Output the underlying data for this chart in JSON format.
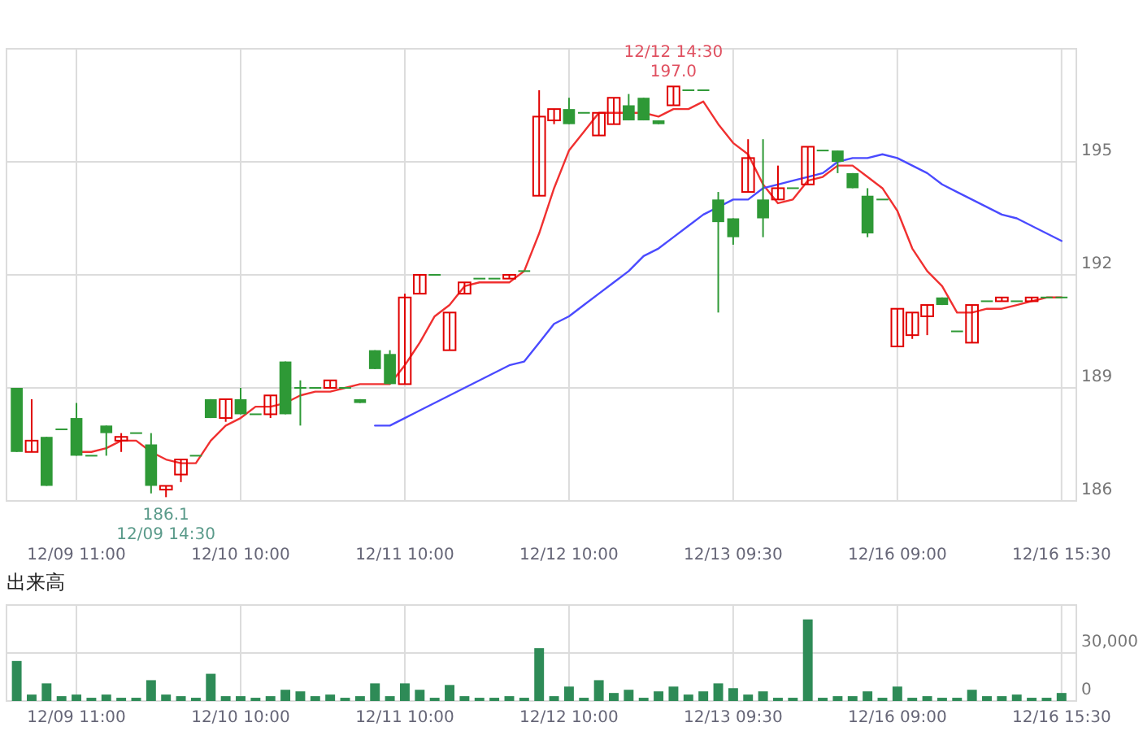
{
  "chart_data": [
    {
      "type": "candlestick",
      "categories": [
        null,
        null,
        null,
        null,
        "12/09 11:00",
        null,
        null,
        null,
        null,
        null,
        null,
        null,
        null,
        null,
        null,
        "12/10 10:00",
        null,
        null,
        null,
        null,
        null,
        null,
        null,
        null,
        null,
        null,
        "12/11 10:00",
        null,
        null,
        null,
        null,
        null,
        null,
        null,
        null,
        null,
        null,
        "12/12 10:00",
        null,
        null,
        null,
        null,
        null,
        null,
        null,
        null,
        null,
        null,
        "12/13 09:30",
        null,
        null,
        null,
        null,
        null,
        null,
        null,
        null,
        null,
        null,
        "12/16 09:00",
        null,
        null,
        null,
        null,
        null,
        null,
        null,
        null,
        null,
        null,
        "12/16 15:30"
      ],
      "ohlc": [
        [
          189.0,
          189.0,
          187.3,
          187.3
        ],
        [
          187.3,
          188.7,
          187.3,
          187.6
        ],
        [
          187.7,
          187.7,
          186.4,
          186.4
        ],
        [
          187.9,
          187.9,
          187.9,
          187.9
        ],
        [
          188.2,
          188.6,
          187.2,
          187.2
        ],
        [
          187.2,
          187.2,
          187.2,
          187.2
        ],
        [
          188.0,
          188.0,
          187.2,
          187.8
        ],
        [
          187.6,
          187.8,
          187.3,
          187.7
        ],
        [
          187.8,
          187.8,
          187.8,
          187.8
        ],
        [
          187.5,
          187.8,
          186.2,
          186.4
        ],
        [
          186.3,
          186.4,
          186.1,
          186.4
        ],
        [
          186.7,
          187.1,
          186.5,
          187.1
        ],
        [
          187.2,
          187.2,
          187.2,
          187.2
        ],
        [
          188.7,
          188.7,
          188.2,
          188.2
        ],
        [
          188.2,
          188.7,
          188.1,
          188.7
        ],
        [
          188.7,
          189.0,
          188.3,
          188.3
        ],
        [
          188.3,
          188.3,
          188.3,
          188.3
        ],
        [
          188.3,
          188.8,
          188.2,
          188.8
        ],
        [
          189.7,
          189.7,
          188.3,
          188.3
        ],
        [
          189.0,
          189.2,
          188.0,
          189.0
        ],
        [
          189.0,
          189.0,
          189.0,
          189.0
        ],
        [
          189.0,
          189.2,
          189.0,
          189.2
        ],
        [
          189.0,
          189.0,
          189.0,
          189.0
        ],
        [
          188.7,
          188.7,
          188.6,
          188.6
        ],
        [
          190.0,
          190.0,
          189.5,
          189.5
        ],
        [
          189.9,
          190.0,
          189.1,
          189.1
        ],
        [
          189.1,
          191.5,
          189.1,
          191.4
        ],
        [
          191.5,
          192.0,
          191.5,
          192.0
        ],
        [
          192.0,
          192.0,
          192.0,
          192.0
        ],
        [
          190.0,
          191.0,
          190.0,
          191.0
        ],
        [
          191.5,
          191.8,
          191.5,
          191.8
        ],
        [
          191.9,
          191.9,
          191.9,
          191.9
        ],
        [
          191.9,
          191.9,
          191.9,
          191.9
        ],
        [
          191.9,
          192.0,
          191.9,
          192.0
        ],
        [
          192.1,
          192.1,
          192.1,
          192.1
        ],
        [
          194.1,
          196.9,
          194.1,
          196.2
        ],
        [
          196.1,
          196.4,
          196.0,
          196.4
        ],
        [
          196.4,
          196.7,
          196.0,
          196.0
        ],
        [
          196.3,
          196.3,
          196.3,
          196.3
        ],
        [
          195.7,
          196.3,
          195.7,
          196.3
        ],
        [
          196.0,
          196.7,
          196.0,
          196.7
        ],
        [
          196.5,
          196.8,
          196.1,
          196.1
        ],
        [
          196.7,
          196.7,
          196.1,
          196.1
        ],
        [
          196.1,
          196.1,
          196.0,
          196.0
        ],
        [
          196.5,
          197.0,
          196.5,
          197.0
        ],
        [
          196.9,
          196.9,
          196.9,
          196.9
        ],
        [
          196.9,
          196.9,
          196.9,
          196.9
        ],
        [
          194.0,
          194.2,
          191.0,
          193.4
        ],
        [
          193.5,
          193.5,
          192.8,
          193.0
        ],
        [
          194.2,
          195.6,
          194.2,
          195.1
        ],
        [
          194.0,
          195.6,
          193.0,
          193.5
        ],
        [
          194.0,
          194.9,
          194.0,
          194.3
        ],
        [
          194.3,
          194.3,
          194.3,
          194.3
        ],
        [
          194.4,
          195.4,
          194.4,
          195.4
        ],
        [
          195.3,
          195.3,
          195.3,
          195.3
        ],
        [
          195.3,
          195.3,
          194.7,
          195.0
        ],
        [
          194.7,
          194.7,
          194.3,
          194.3
        ],
        [
          194.1,
          194.3,
          193.0,
          193.1
        ],
        [
          194.0,
          194.0,
          194.0,
          194.0
        ],
        [
          190.1,
          191.1,
          190.1,
          191.1
        ],
        [
          190.4,
          191.0,
          190.3,
          191.0
        ],
        [
          190.9,
          191.2,
          190.4,
          191.2
        ],
        [
          191.4,
          191.4,
          191.2,
          191.2
        ],
        [
          190.5,
          190.5,
          190.5,
          190.5
        ],
        [
          190.2,
          191.2,
          190.2,
          191.2
        ],
        [
          191.3,
          191.3,
          191.3,
          191.3
        ],
        [
          191.3,
          191.4,
          191.3,
          191.4
        ],
        [
          191.3,
          191.3,
          191.3,
          191.3
        ],
        [
          191.3,
          191.4,
          191.3,
          191.4
        ],
        [
          191.4,
          191.4,
          191.4,
          191.4
        ],
        [
          191.4,
          191.4,
          191.4,
          191.4
        ]
      ],
      "colors": [
        "#2e9936",
        "#e00000",
        "#2e9936",
        "#2e9936",
        "#2e9936",
        "#2e9936",
        "#2e9936",
        "#e00000",
        "#2e9936",
        "#2e9936",
        "#e00000",
        "#e00000",
        "#2e9936",
        "#2e9936",
        "#e00000",
        "#2e9936",
        "#2e9936",
        "#e00000",
        "#2e9936",
        "#2e9936",
        "#2e9936",
        "#e00000",
        "#2e9936",
        "#2e9936",
        "#2e9936",
        "#2e9936",
        "#e00000",
        "#e00000",
        "#2e9936",
        "#e00000",
        "#e00000",
        "#2e9936",
        "#2e9936",
        "#e00000",
        "#2e9936",
        "#e00000",
        "#e00000",
        "#2e9936",
        "#2e9936",
        "#e00000",
        "#e00000",
        "#2e9936",
        "#2e9936",
        "#2e9936",
        "#e00000",
        "#2e9936",
        "#2e9936",
        "#2e9936",
        "#2e9936",
        "#e00000",
        "#2e9936",
        "#e00000",
        "#2e9936",
        "#e00000",
        "#2e9936",
        "#2e9936",
        "#2e9936",
        "#2e9936",
        "#2e9936",
        "#e00000",
        "#e00000",
        "#e00000",
        "#2e9936",
        "#2e9936",
        "#e00000",
        "#2e9936",
        "#e00000",
        "#2e9936",
        "#e00000",
        "#2e9936",
        "#2e9936"
      ],
      "series": [
        {
          "type": "line",
          "color": "#f03030",
          "values": [
            null,
            null,
            null,
            null,
            187.3,
            187.3,
            187.4,
            187.6,
            187.6,
            187.3,
            187.1,
            187.0,
            187.0,
            187.6,
            188.0,
            188.2,
            188.5,
            188.5,
            188.6,
            188.8,
            188.9,
            188.9,
            189.0,
            189.1,
            189.1,
            189.1,
            189.6,
            190.2,
            190.9,
            191.2,
            191.7,
            191.8,
            191.8,
            191.8,
            192.1,
            193.1,
            194.3,
            195.3,
            195.8,
            196.3,
            196.3,
            196.3,
            196.3,
            196.2,
            196.4,
            196.4,
            196.6,
            196.0,
            195.5,
            195.2,
            194.4,
            193.9,
            194.0,
            194.5,
            194.6,
            194.9,
            194.9,
            194.6,
            194.3,
            193.7,
            192.7,
            192.1,
            191.7,
            191.0,
            191.0,
            191.1,
            191.1,
            191.2,
            191.3,
            191.4,
            191.4
          ]
        },
        {
          "type": "line",
          "color": "#4a4aff",
          "values": [
            null,
            null,
            null,
            null,
            null,
            null,
            null,
            null,
            null,
            null,
            null,
            null,
            null,
            null,
            null,
            null,
            null,
            null,
            null,
            null,
            null,
            null,
            null,
            null,
            188.0,
            188.0,
            188.2,
            188.4,
            188.6,
            188.8,
            189.0,
            189.2,
            189.4,
            189.6,
            189.7,
            190.2,
            190.7,
            190.9,
            191.2,
            191.5,
            191.8,
            192.1,
            192.5,
            192.7,
            193.0,
            193.3,
            193.6,
            193.8,
            194.0,
            194.0,
            194.3,
            194.4,
            194.5,
            194.6,
            194.7,
            195.0,
            195.1,
            195.1,
            195.2,
            195.1,
            194.9,
            194.7,
            194.4,
            194.2,
            194.0,
            193.8,
            193.6,
            193.5,
            193.3,
            193.1,
            192.9
          ]
        }
      ],
      "ylim": [
        186,
        198
      ],
      "yticks": [
        186,
        189,
        192,
        195,
        {
          "value": 198,
          "label": null
        }
      ],
      "grid": true,
      "annotations": [
        {
          "text": "186.1",
          "y": 186.1
        },
        {
          "text": "12/09 14:30",
          "y": 186.1
        },
        {
          "text": "12/12 14:30",
          "y": 197.0
        },
        {
          "text": "197.0",
          "y": 197.0
        }
      ]
    },
    {
      "type": "bar",
      "title": "出来高",
      "categories": [
        null,
        null,
        null,
        null,
        "12/09 11:00",
        null,
        null,
        null,
        null,
        null,
        null,
        null,
        null,
        null,
        null,
        "12/10 10:00",
        null,
        null,
        null,
        null,
        null,
        null,
        null,
        null,
        null,
        null,
        "12/11 10:00",
        null,
        null,
        null,
        null,
        null,
        null,
        null,
        null,
        null,
        null,
        "12/12 10:00",
        null,
        null,
        null,
        null,
        null,
        null,
        null,
        null,
        null,
        null,
        "12/13 09:30",
        null,
        null,
        null,
        null,
        null,
        null,
        null,
        null,
        null,
        null,
        "12/16 09:00",
        null,
        null,
        null,
        null,
        null,
        null,
        null,
        null,
        null,
        null,
        "12/16 15:30"
      ],
      "values": [
        25000,
        4000,
        11000,
        3000,
        4000,
        2000,
        4000,
        2000,
        2000,
        13000,
        4000,
        3000,
        2000,
        17000,
        3000,
        3000,
        2000,
        3000,
        7000,
        6000,
        3000,
        4000,
        2000,
        3000,
        11000,
        3000,
        11000,
        7000,
        2000,
        10000,
        3000,
        2000,
        2000,
        3000,
        2000,
        33000,
        3000,
        9000,
        2000,
        13000,
        5000,
        7000,
        2000,
        6000,
        9000,
        4000,
        6000,
        11000,
        8000,
        4000,
        6000,
        2000,
        2000,
        51000,
        2000,
        3000,
        3000,
        6000,
        2000,
        9000,
        2000,
        3000,
        2000,
        2000,
        7000,
        3000,
        3000,
        4000,
        2000,
        2000,
        5000
      ],
      "color": "#2e8b57",
      "ylim": [
        0,
        60000
      ],
      "yticks": [
        0,
        {
          "value": 30000,
          "label": "30,000"
        },
        {
          "value": 60000,
          "label": null
        }
      ],
      "grid": true
    }
  ]
}
